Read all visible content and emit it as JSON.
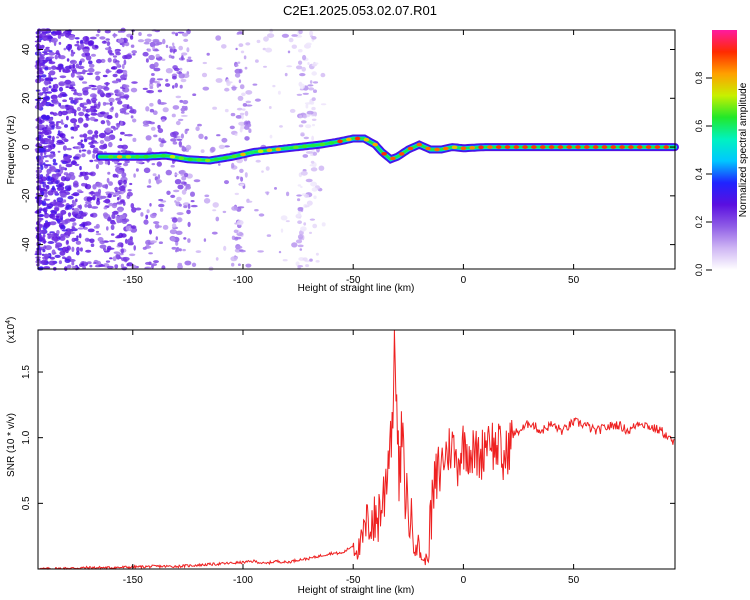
{
  "figure": {
    "title": "C2E1.2025.053.02.07.R01"
  },
  "chart_data": [
    {
      "type": "heatmap",
      "xlabel": "Height of straight line (km)",
      "ylabel": "Frequency (Hz)",
      "xlim": [
        -193,
        96
      ],
      "ylim": [
        -50,
        48
      ],
      "xticks": [
        -150,
        -100,
        -50,
        0,
        50
      ],
      "yticks": [
        -40,
        -20,
        0,
        20,
        40
      ],
      "colorbar": {
        "label": "Normalized spectral amplitude",
        "range": [
          0.0,
          1.0
        ],
        "ticks": [
          0.0,
          0.2,
          0.4,
          0.6,
          0.8
        ],
        "colormap": [
          "#ffffff",
          "#cfb6f4",
          "#8f5ce6",
          "#5a0fe0",
          "#1f24ff",
          "#00c8ff",
          "#00f2c0",
          "#22e82a",
          "#c8f000",
          "#ffa000",
          "#ff2a00",
          "#ff1aa0"
        ]
      },
      "ridge": {
        "x": [
          -165,
          -155,
          -145,
          -135,
          -125,
          -115,
          -105,
          -95,
          -85,
          -75,
          -65,
          -58,
          -50,
          -45,
          -40,
          -37,
          -33,
          -30,
          -25,
          -20,
          -15,
          -10,
          -5,
          0,
          10,
          20,
          40,
          60,
          80,
          96
        ],
        "frequency": [
          -4,
          -4,
          -4,
          -3.5,
          -5,
          -5.5,
          -4,
          -2,
          -1,
          0,
          1,
          2,
          3.5,
          3.5,
          1,
          -2,
          -5,
          -4,
          -1,
          1,
          -1,
          -1,
          0,
          -0.5,
          0,
          0,
          0,
          0,
          0,
          0
        ]
      }
    },
    {
      "type": "line",
      "xlabel": "Height of straight line (km)",
      "ylabel": "SNR (10 * v/v)",
      "scale_label": "(x10",
      "scale_exponent": "4",
      "xlim": [
        -193,
        96
      ],
      "ylim": [
        0,
        1.82
      ],
      "xticks": [
        -150,
        -100,
        -50,
        0,
        50
      ],
      "yticks": [
        0.5,
        1.0,
        1.5
      ],
      "ytick_labels": [
        "0.5",
        "1.0",
        "1.5"
      ],
      "color": "#ee2020",
      "series": [
        {
          "x": [
            -193,
            -180,
            -170,
            -160,
            -150,
            -140,
            -130,
            -120,
            -110,
            -100,
            -95,
            -90,
            -85,
            -80,
            -75,
            -70,
            -65,
            -60,
            -55,
            -50,
            -47,
            -45,
            -42,
            -40,
            -38,
            -36,
            -34,
            -32,
            -31,
            -30,
            -29,
            -28,
            -27,
            -25,
            -23,
            -20,
            -18,
            -16,
            -15,
            -13,
            -11,
            -9,
            -7,
            -5,
            -3,
            0,
            3,
            5,
            8,
            10,
            12,
            14,
            16,
            18,
            20,
            22,
            25,
            28,
            30,
            35,
            40,
            45,
            50,
            55,
            60,
            65,
            70,
            75,
            80,
            85,
            90,
            96
          ],
          "y": [
            0.0,
            0.005,
            0.01,
            0.01,
            0.015,
            0.02,
            0.02,
            0.03,
            0.04,
            0.05,
            0.06,
            0.04,
            0.06,
            0.05,
            0.07,
            0.08,
            0.1,
            0.12,
            0.12,
            0.18,
            0.15,
            0.28,
            0.4,
            0.35,
            0.45,
            0.55,
            0.9,
            1.2,
            1.82,
            1.0,
            0.6,
            1.1,
            0.7,
            0.45,
            0.3,
            0.15,
            0.05,
            0.1,
            0.35,
            0.6,
            0.75,
            0.85,
            0.9,
            0.95,
            0.8,
            0.95,
            0.9,
            0.88,
            0.85,
            0.98,
            1.05,
            0.9,
            0.95,
            0.8,
            0.9,
            1.02,
            1.05,
            1.08,
            1.12,
            1.05,
            1.1,
            1.05,
            1.12,
            1.1,
            1.05,
            1.08,
            1.1,
            1.05,
            1.12,
            1.08,
            1.05,
            0.95
          ]
        }
      ]
    }
  ]
}
